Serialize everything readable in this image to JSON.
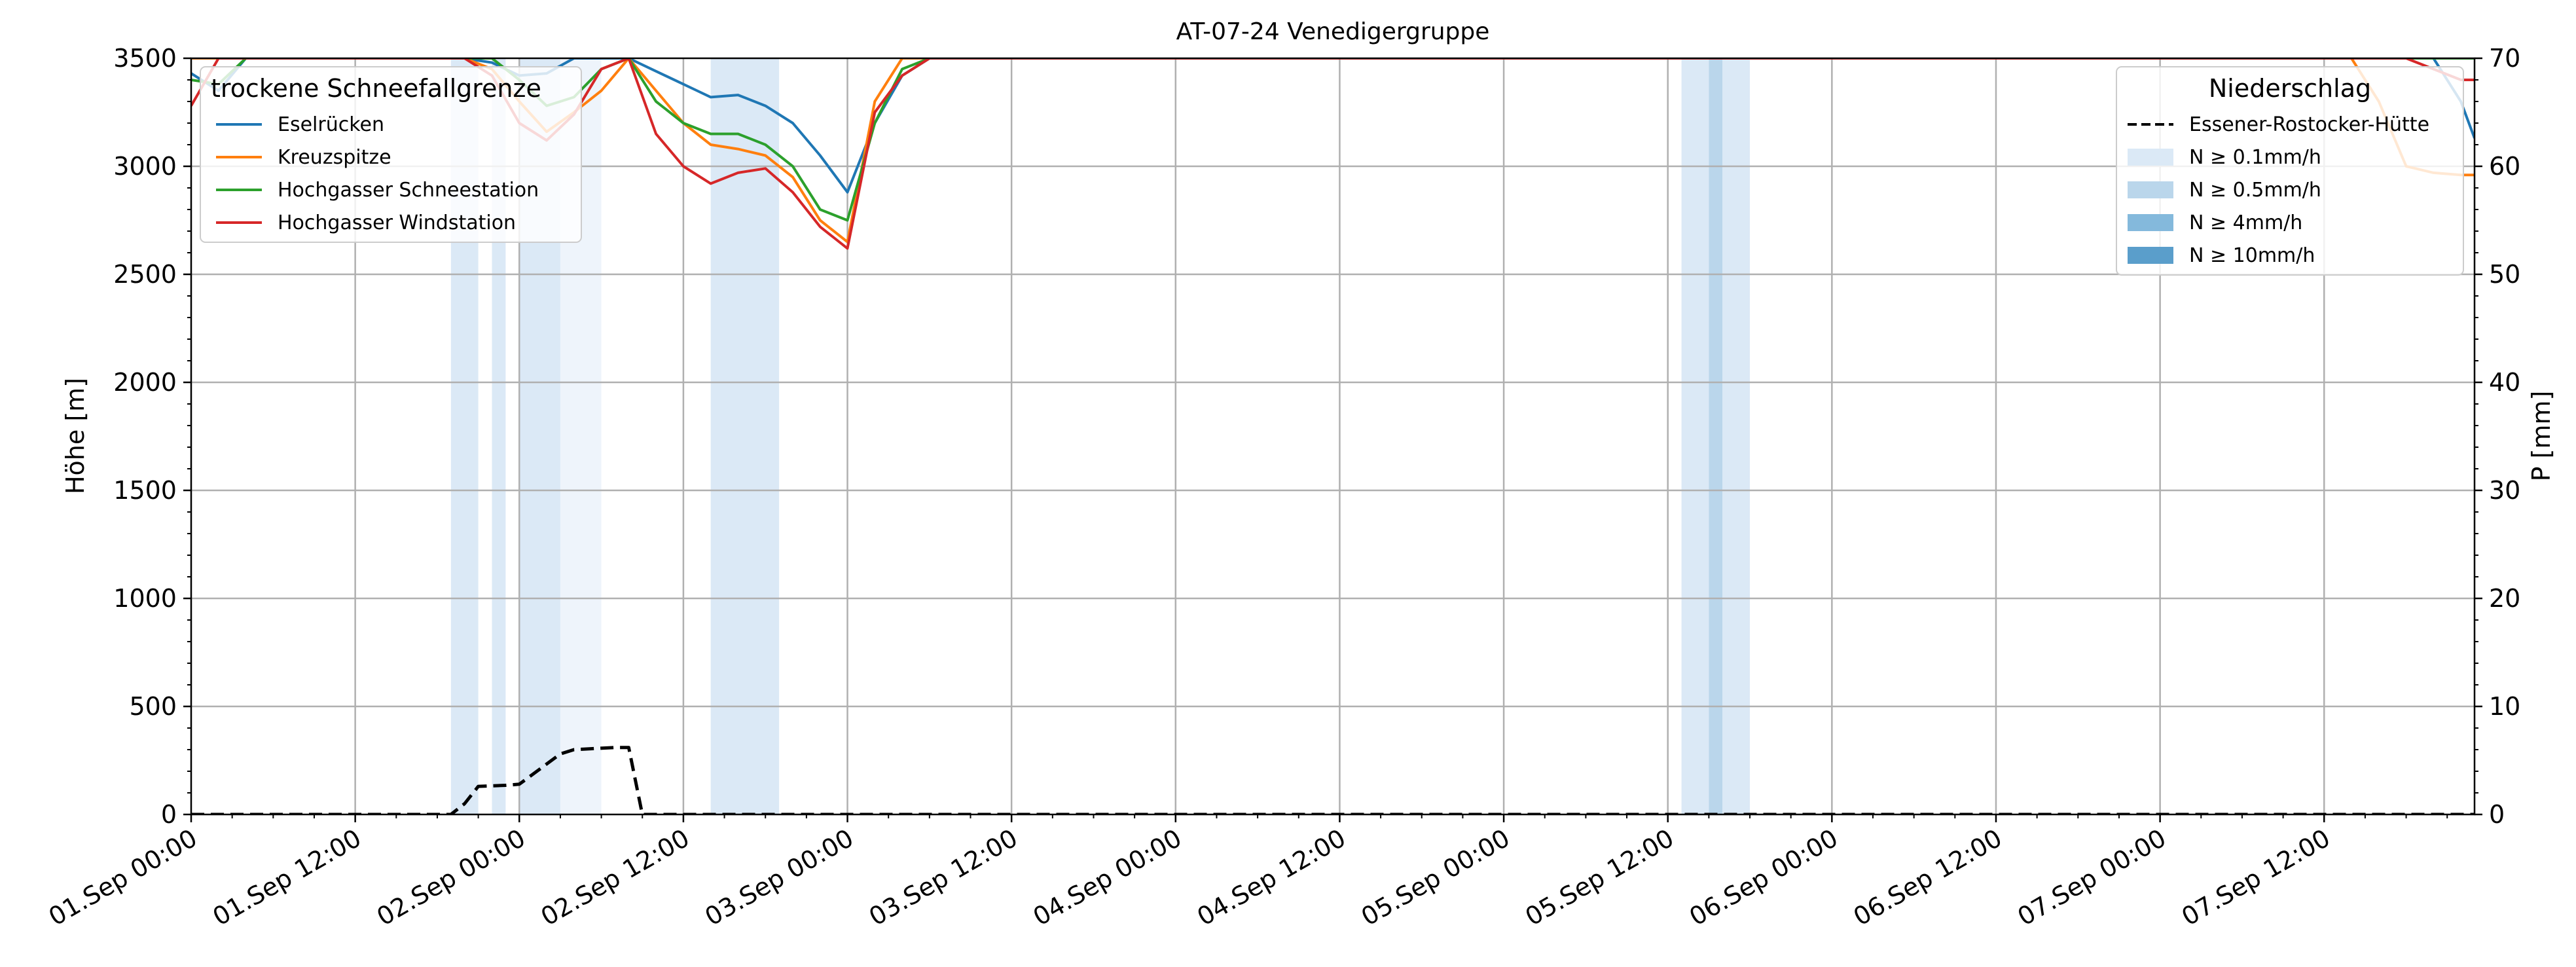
{
  "chart_data": {
    "type": "line",
    "title": "AT-07-24 Venedigergruppe",
    "ylabel_left": "Höhe [m]",
    "ylabel_right": "P [mm]",
    "ylim_left": [
      0,
      3500
    ],
    "ylim_right": [
      0,
      70
    ],
    "xlim_hours": [
      0,
      167
    ],
    "grid": true,
    "x_tick_labels": [
      "01.Sep 00:00",
      "01.Sep 12:00",
      "02.Sep 00:00",
      "02.Sep 12:00",
      "03.Sep 00:00",
      "03.Sep 12:00",
      "04.Sep 00:00",
      "04.Sep 12:00",
      "05.Sep 00:00",
      "05.Sep 12:00",
      "06.Sep 00:00",
      "06.Sep 12:00",
      "07.Sep 00:00",
      "07.Sep 12:00"
    ],
    "y_ticks_left": [
      0,
      500,
      1000,
      1500,
      2000,
      2500,
      3000,
      3500
    ],
    "y_ticks_right": [
      0,
      10,
      20,
      30,
      40,
      50,
      60,
      70
    ],
    "legend_left": {
      "title": "trockene Schneefallgrenze",
      "position": "upper-left"
    },
    "legend_right": {
      "title": "Niederschlag",
      "position": "upper-right",
      "entries": [
        {
          "label": "Essener-Rostocker-Hütte",
          "style": "dashed",
          "color": "#000000"
        },
        {
          "label": "N ≥ 0.1mm/h",
          "color": "#dbe9f6"
        },
        {
          "label": "N ≥ 0.5mm/h",
          "color": "#bad6eb"
        },
        {
          "label": "N ≥ 4mm/h",
          "color": "#84b9dc"
        },
        {
          "label": "N ≥ 10mm/h",
          "color": "#5a9ecb"
        }
      ]
    },
    "series": [
      {
        "name": "Eselrücken",
        "color": "#1f77b4",
        "x": [
          0,
          2,
          4,
          6,
          8,
          10,
          12,
          14,
          16,
          18,
          19,
          20,
          22,
          24,
          26,
          28,
          30,
          32,
          34,
          36,
          37,
          38,
          40,
          42,
          44,
          46,
          48,
          50,
          52,
          54,
          56,
          58,
          60,
          62,
          64,
          66,
          68,
          70,
          72,
          76,
          80,
          84,
          88,
          92,
          96,
          100,
          104,
          108,
          112,
          116,
          120,
          124,
          126,
          128,
          130,
          132,
          134,
          136,
          138,
          140,
          142,
          144,
          146,
          148,
          150,
          152,
          154,
          156,
          158,
          160,
          162,
          164,
          166,
          167
        ],
        "y": [
          3430,
          3350,
          3500,
          3500,
          3500,
          3500,
          3500,
          3500,
          3500,
          3500,
          3500,
          3500,
          3480,
          3420,
          3430,
          3500,
          3500,
          3500,
          3440,
          3380,
          3350,
          3320,
          3330,
          3280,
          3200,
          3050,
          2880,
          3200,
          3420,
          3500,
          3500,
          3500,
          3500,
          3500,
          3500,
          3500,
          3500,
          3500,
          3500,
          3500,
          3500,
          3500,
          3500,
          3500,
          3500,
          3500,
          3500,
          3500,
          3500,
          3500,
          3500,
          3500,
          3500,
          3500,
          3500,
          3500,
          3500,
          3500,
          3500,
          3500,
          3500,
          3500,
          3500,
          3500,
          3500,
          3500,
          3500,
          3500,
          3500,
          3500,
          3500,
          3500,
          3300,
          3130
        ]
      },
      {
        "name": "Kreuzspitze",
        "color": "#ff7f0e",
        "x": [
          0,
          2,
          4,
          6,
          8,
          10,
          12,
          14,
          16,
          18,
          20,
          22,
          24,
          26,
          28,
          30,
          32,
          34,
          36,
          38,
          40,
          42,
          44,
          46,
          48,
          50,
          52,
          54,
          56,
          58,
          60,
          62,
          64,
          66,
          68,
          70,
          72,
          76,
          80,
          84,
          88,
          92,
          96,
          100,
          104,
          108,
          112,
          116,
          120,
          124,
          126,
          128,
          130,
          132,
          134,
          136,
          138,
          140,
          142,
          144,
          146,
          148,
          150,
          152,
          154,
          156,
          158,
          160,
          162,
          164,
          166,
          167
        ],
        "y": [
          3500,
          3500,
          3500,
          3500,
          3500,
          3500,
          3500,
          3500,
          3500,
          3500,
          3500,
          3450,
          3300,
          3160,
          3250,
          3350,
          3500,
          3350,
          3200,
          3100,
          3080,
          3050,
          2950,
          2750,
          2650,
          3300,
          3500,
          3500,
          3500,
          3500,
          3500,
          3500,
          3500,
          3500,
          3500,
          3500,
          3500,
          3500,
          3500,
          3500,
          3500,
          3500,
          3500,
          3500,
          3500,
          3500,
          3500,
          3500,
          3500,
          3500,
          3500,
          3500,
          3500,
          3500,
          3500,
          3500,
          3500,
          3500,
          3500,
          3500,
          3500,
          3500,
          3500,
          3500,
          3500,
          3500,
          3500,
          3300,
          3000,
          2970,
          2960,
          2960
        ]
      },
      {
        "name": "Hochgasser Schneestation",
        "color": "#2ca02c",
        "x": [
          0,
          2,
          4,
          6,
          8,
          10,
          12,
          14,
          16,
          18,
          20,
          22,
          24,
          26,
          28,
          30,
          32,
          34,
          36,
          38,
          40,
          42,
          44,
          46,
          48,
          50,
          52,
          54,
          56,
          58,
          60,
          62,
          64,
          66,
          68,
          70,
          72,
          76,
          80,
          84,
          88,
          92,
          96,
          100,
          104,
          108,
          112,
          116,
          120,
          124,
          126,
          128,
          130,
          132,
          134,
          136,
          138,
          140,
          142,
          144,
          146,
          148,
          150,
          152,
          154,
          156,
          158,
          160,
          162,
          164,
          166,
          167
        ],
        "y": [
          3400,
          3380,
          3500,
          3500,
          3500,
          3500,
          3500,
          3500,
          3500,
          3500,
          3500,
          3500,
          3400,
          3280,
          3320,
          3450,
          3500,
          3300,
          3200,
          3150,
          3150,
          3100,
          3000,
          2800,
          2750,
          3200,
          3450,
          3500,
          3500,
          3500,
          3500,
          3500,
          3500,
          3500,
          3500,
          3500,
          3500,
          3500,
          3500,
          3500,
          3500,
          3500,
          3500,
          3500,
          3500,
          3500,
          3500,
          3500,
          3500,
          3500,
          3500,
          3500,
          3500,
          3500,
          3500,
          3500,
          3500,
          3500,
          3500,
          3500,
          3500,
          3500,
          3500,
          3500,
          3500,
          3500,
          3500,
          3500,
          3500,
          3500,
          3500,
          3500
        ]
      },
      {
        "name": "Hochgasser Windstation",
        "color": "#d62728",
        "x": [
          0,
          2,
          4,
          6,
          8,
          10,
          12,
          14,
          16,
          18,
          20,
          22,
          24,
          26,
          28,
          30,
          32,
          34,
          36,
          38,
          40,
          42,
          44,
          46,
          48,
          50,
          52,
          54,
          56,
          58,
          60,
          62,
          64,
          66,
          68,
          70,
          72,
          76,
          80,
          84,
          88,
          92,
          96,
          100,
          104,
          108,
          112,
          116,
          120,
          124,
          126,
          128,
          130,
          132,
          134,
          136,
          138,
          140,
          142,
          144,
          146,
          148,
          150,
          152,
          154,
          156,
          158,
          160,
          162,
          164,
          166,
          167
        ],
        "y": [
          3280,
          3500,
          3500,
          3500,
          3500,
          3500,
          3500,
          3500,
          3500,
          3500,
          3500,
          3420,
          3200,
          3120,
          3240,
          3450,
          3500,
          3150,
          3000,
          2920,
          2970,
          2990,
          2880,
          2720,
          2620,
          3250,
          3420,
          3500,
          3500,
          3500,
          3500,
          3500,
          3500,
          3500,
          3500,
          3500,
          3500,
          3500,
          3500,
          3500,
          3500,
          3500,
          3500,
          3500,
          3500,
          3500,
          3500,
          3500,
          3500,
          3500,
          3500,
          3500,
          3500,
          3500,
          3500,
          3500,
          3500,
          3500,
          3500,
          3500,
          3500,
          3500,
          3500,
          3500,
          3500,
          3500,
          3500,
          3500,
          3500,
          3450,
          3400,
          3400
        ]
      },
      {
        "name": "Essener-Rostocker-Hütte",
        "color": "#000000",
        "dashed": true,
        "axis": "right",
        "x": [
          0,
          19,
          20,
          21,
          23,
          24,
          27,
          28,
          31,
          32,
          33,
          38,
          39,
          40,
          41,
          42,
          54,
          55,
          56,
          108,
          109,
          109.8,
          110.5,
          111.5,
          113.5,
          114.5,
          115.5,
          116,
          117,
          118,
          119,
          120,
          121,
          124,
          127,
          130,
          132,
          136,
          138,
          140,
          144,
          160,
          167
        ],
        "y": [
          0,
          0,
          1,
          2.6,
          2.7,
          2.8,
          5.6,
          6.0,
          6.2,
          6.2,
          0,
          0,
          0,
          0,
          0,
          0,
          0,
          0,
          0,
          0,
          0,
          0,
          0,
          0,
          0,
          0,
          0,
          0,
          0,
          0,
          0,
          0,
          0,
          0,
          0,
          0,
          0,
          0,
          0,
          0,
          0,
          0,
          0
        ]
      }
    ],
    "precip_bands": [
      {
        "start": 19,
        "end": 21,
        "level": 1
      },
      {
        "start": 22,
        "end": 23,
        "level": 1
      },
      {
        "start": 24,
        "end": 27,
        "level": 1
      },
      {
        "start": 27,
        "end": 30,
        "level": 0
      },
      {
        "start": 38,
        "end": 43,
        "level": 1
      },
      {
        "start": 109,
        "end": 111,
        "level": 1
      },
      {
        "start": 111,
        "end": 112,
        "level": 2
      },
      {
        "start": 112,
        "end": 114,
        "level": 1
      }
    ]
  }
}
